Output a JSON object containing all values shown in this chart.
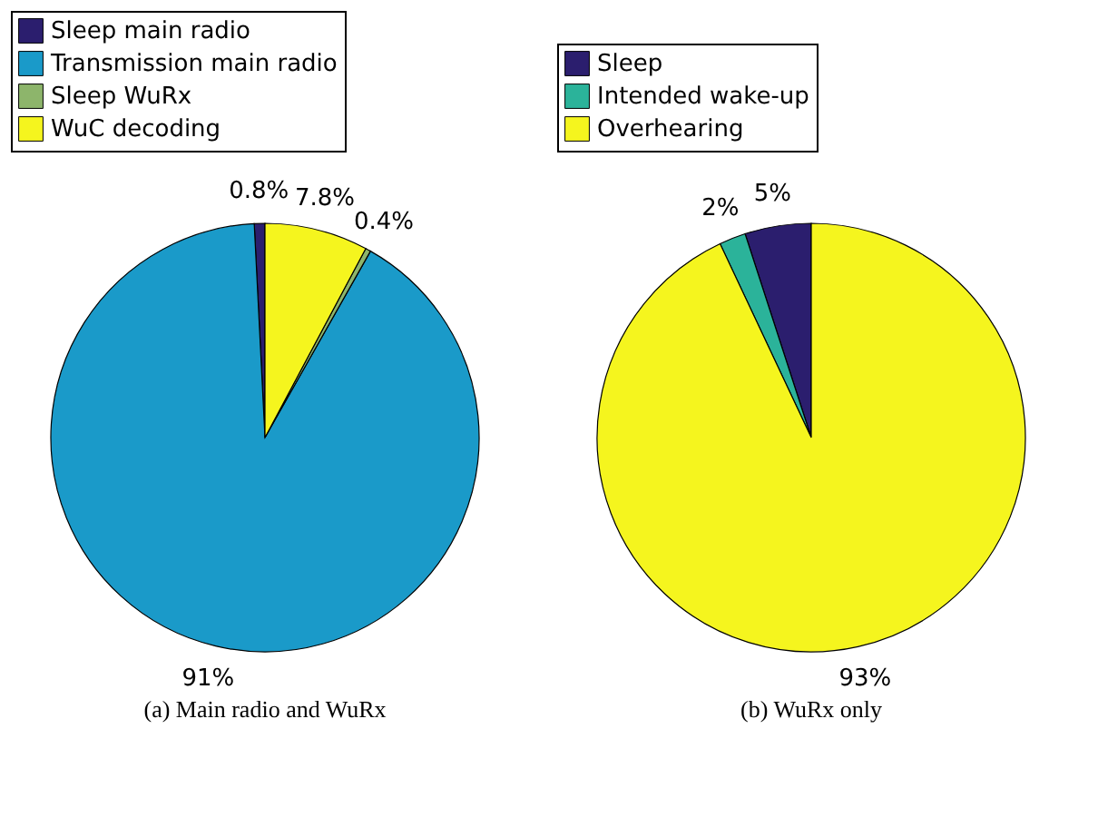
{
  "chart_data": [
    {
      "type": "pie",
      "categories": [
        "Sleep main radio",
        "Transmission main radio",
        "Sleep WuRx",
        "WuC decoding"
      ],
      "values": [
        0.8,
        91,
        0.4,
        7.8
      ],
      "value_labels": [
        "0.8%",
        "91%",
        "0.4%",
        "7.8%"
      ],
      "colors": [
        "#2b1e6e",
        "#1a9ac9",
        "#8db56b",
        "#f5f51e"
      ],
      "legend": "top left",
      "annotations": [
        "(a) Main radio and WuRx"
      ]
    },
    {
      "type": "pie",
      "categories": [
        "Sleep",
        "Intended wake-up",
        "Overhearing"
      ],
      "values": [
        5,
        2,
        93
      ],
      "value_labels": [
        "5%",
        "2%",
        "93%"
      ],
      "colors": [
        "#2b1e6e",
        "#2bb39a",
        "#f5f51e"
      ],
      "legend": "top",
      "annotations": [
        "(b) WuRx only"
      ]
    }
  ]
}
